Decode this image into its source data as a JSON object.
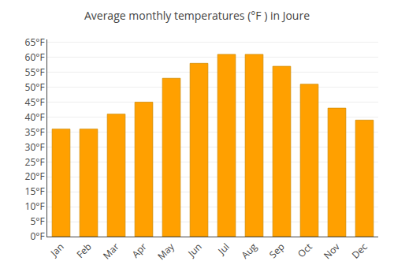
{
  "chart_data": {
    "type": "bar",
    "title": "Average monthly temperatures (°F ) in Joure",
    "categories": [
      "Jan",
      "Feb",
      "Mar",
      "Apr",
      "May",
      "Jun",
      "Jul",
      "Aug",
      "Sep",
      "Oct",
      "Nov",
      "Dec"
    ],
    "values": [
      36,
      36,
      41,
      45,
      53,
      58,
      61,
      61,
      57,
      51,
      43,
      39
    ],
    "color": "#FFA000",
    "ylim": [
      0,
      66
    ],
    "yticks": [
      {
        "value": 0,
        "label": "0°F"
      },
      {
        "value": 5,
        "label": "5°F"
      },
      {
        "value": 10,
        "label": "10°F"
      },
      {
        "value": 15,
        "label": "15°F"
      },
      {
        "value": 20,
        "label": "20°F"
      },
      {
        "value": 25,
        "label": "25°F"
      },
      {
        "value": 30,
        "label": "30°F"
      },
      {
        "value": 35,
        "label": "35°F"
      },
      {
        "value": 40,
        "label": "40°F"
      },
      {
        "value": 45,
        "label": "45°F"
      },
      {
        "value": 50,
        "label": "50°F"
      },
      {
        "value": 55,
        "label": "55°F"
      },
      {
        "value": 60,
        "label": "60°F"
      },
      {
        "value": 65,
        "label": "65°F"
      }
    ],
    "grid": true
  }
}
